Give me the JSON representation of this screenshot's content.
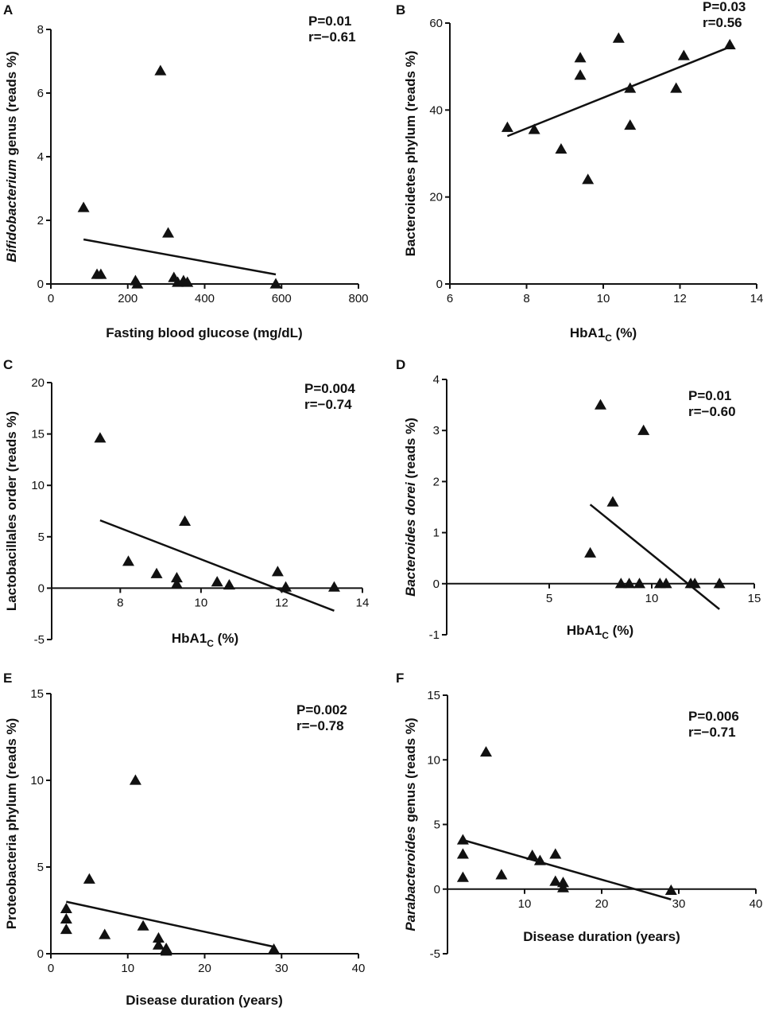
{
  "chart_data": [
    {
      "id": "A",
      "type": "scatter",
      "panel_label": "A",
      "xlabel": "Fasting blood glucose (mg/dL)",
      "ylabel": {
        "italic": "Bifidobacterium",
        "rest": " genus (reads %)"
      },
      "stats": [
        "P=0.01",
        "r=−0.61"
      ],
      "xlim": [
        0,
        800
      ],
      "ylim": [
        0,
        8
      ],
      "xticks": [
        0,
        200,
        400,
        600,
        800
      ],
      "yticks": [
        0,
        2,
        4,
        6,
        8
      ],
      "points": [
        [
          285,
          6.7
        ],
        [
          85,
          2.4
        ],
        [
          305,
          1.6
        ],
        [
          120,
          0.3
        ],
        [
          130,
          0.3
        ],
        [
          220,
          0.1
        ],
        [
          225,
          0.0
        ],
        [
          320,
          0.2
        ],
        [
          330,
          0.05
        ],
        [
          345,
          0.1
        ],
        [
          355,
          0.05
        ],
        [
          585,
          0.0
        ]
      ],
      "fit": [
        [
          85,
          1.4
        ],
        [
          585,
          0.3
        ]
      ]
    },
    {
      "id": "B",
      "type": "scatter",
      "panel_label": "B",
      "xlabel": {
        "main": "HbA1",
        "sub": "C",
        "rest": " (%)"
      },
      "ylabel": {
        "italic": "",
        "rest": "Bacteroidetes phylum (reads %)"
      },
      "stats": [
        "P=0.03",
        "r=0.56"
      ],
      "xlim": [
        6,
        14
      ],
      "ylim": [
        0,
        60
      ],
      "xticks": [
        6,
        8,
        10,
        12,
        14
      ],
      "yticks": [
        0,
        20,
        40,
        60
      ],
      "points": [
        [
          7.5,
          36
        ],
        [
          8.2,
          35.5
        ],
        [
          8.9,
          31
        ],
        [
          9.4,
          52
        ],
        [
          9.4,
          48
        ],
        [
          9.6,
          24
        ],
        [
          10.4,
          56.5
        ],
        [
          10.7,
          45
        ],
        [
          10.7,
          36.5
        ],
        [
          11.9,
          45
        ],
        [
          12.1,
          52.5
        ],
        [
          13.3,
          55
        ]
      ],
      "fit": [
        [
          7.5,
          34
        ],
        [
          13.3,
          54.5
        ]
      ]
    },
    {
      "id": "C",
      "type": "scatter",
      "panel_label": "C",
      "xlabel": {
        "main": "HbA1",
        "sub": "C",
        "rest": " (%)"
      },
      "ylabel": {
        "italic": "",
        "rest": "Lactobacillales order (reads %)"
      },
      "stats": [
        "P=0.004",
        "r=−0.74"
      ],
      "xlim": [
        6.3,
        14
      ],
      "ylim": [
        -5,
        20
      ],
      "xticks": [
        8,
        10,
        12,
        14
      ],
      "yticks": [
        -5,
        0,
        5,
        10,
        15,
        20
      ],
      "points": [
        [
          7.5,
          14.6
        ],
        [
          8.2,
          2.6
        ],
        [
          8.9,
          1.4
        ],
        [
          9.4,
          1.0
        ],
        [
          9.4,
          0.4
        ],
        [
          9.6,
          6.5
        ],
        [
          10.4,
          0.6
        ],
        [
          10.7,
          0.3
        ],
        [
          11.9,
          1.6
        ],
        [
          12.1,
          0.1
        ],
        [
          13.3,
          0.1
        ]
      ],
      "fit": [
        [
          7.5,
          6.6
        ],
        [
          13.3,
          -2.2
        ]
      ]
    },
    {
      "id": "D",
      "type": "scatter",
      "panel_label": "D",
      "xlabel": {
        "main": "HbA1",
        "sub": "C",
        "rest": " (%)"
      },
      "ylabel": {
        "italic": "Bacteroides dorei",
        "rest": " (reads %)"
      },
      "stats": [
        "P=0.01",
        "r=−0.60"
      ],
      "xlim": [
        0,
        15
      ],
      "ylim": [
        -1,
        4
      ],
      "xticks": [
        5,
        10,
        15
      ],
      "yticks": [
        -1,
        0,
        1,
        2,
        3,
        4
      ],
      "points": [
        [
          7.5,
          3.5
        ],
        [
          9.6,
          3.0
        ],
        [
          8.1,
          1.6
        ],
        [
          7.0,
          0.6
        ],
        [
          8.5,
          0.0
        ],
        [
          8.9,
          0.0
        ],
        [
          9.4,
          0.0
        ],
        [
          10.4,
          0.0
        ],
        [
          10.7,
          0.0
        ],
        [
          11.9,
          0.0
        ],
        [
          12.1,
          0.0
        ],
        [
          13.3,
          0.0
        ]
      ],
      "fit": [
        [
          7.0,
          1.55
        ],
        [
          13.3,
          -0.5
        ]
      ]
    },
    {
      "id": "E",
      "type": "scatter",
      "panel_label": "E",
      "xlabel": "Disease duration (years)",
      "ylabel": {
        "italic": "",
        "rest": "Proteobacteria phylum (reads %)"
      },
      "stats": [
        "P=0.002",
        "r=−0.78"
      ],
      "xlim": [
        0,
        40
      ],
      "ylim": [
        0,
        15
      ],
      "xticks": [
        0,
        10,
        20,
        30,
        40
      ],
      "yticks": [
        0,
        5,
        10,
        15
      ],
      "points": [
        [
          11,
          10.0
        ],
        [
          5,
          4.3
        ],
        [
          2,
          2.6
        ],
        [
          2,
          2.0
        ],
        [
          2,
          1.4
        ],
        [
          7,
          1.1
        ],
        [
          12,
          1.6
        ],
        [
          14,
          0.9
        ],
        [
          14,
          0.5
        ],
        [
          15,
          0.3
        ],
        [
          15,
          0.15
        ],
        [
          29,
          0.25
        ]
      ],
      "fit": [
        [
          2,
          3.0
        ],
        [
          29,
          0.4
        ]
      ]
    },
    {
      "id": "F",
      "type": "scatter",
      "panel_label": "F",
      "xlabel": "Disease duration (years)",
      "ylabel": {
        "italic": "Parabacteroides",
        "rest": " genus (reads %)"
      },
      "stats": [
        "P=0.006",
        "r=−0.71"
      ],
      "xlim": [
        0,
        40
      ],
      "ylim": [
        -5,
        15
      ],
      "xticks": [
        10,
        20,
        30,
        40
      ],
      "yticks": [
        -5,
        0,
        5,
        10,
        15
      ],
      "points": [
        [
          5,
          10.6
        ],
        [
          2,
          3.8
        ],
        [
          2,
          2.7
        ],
        [
          2,
          0.9
        ],
        [
          7,
          1.1
        ],
        [
          11,
          2.6
        ],
        [
          12,
          2.2
        ],
        [
          14,
          2.7
        ],
        [
          14,
          0.6
        ],
        [
          15,
          0.5
        ],
        [
          15,
          0.1
        ],
        [
          29,
          -0.1
        ]
      ],
      "fit": [
        [
          2,
          3.8
        ],
        [
          29,
          -0.8
        ]
      ]
    }
  ]
}
